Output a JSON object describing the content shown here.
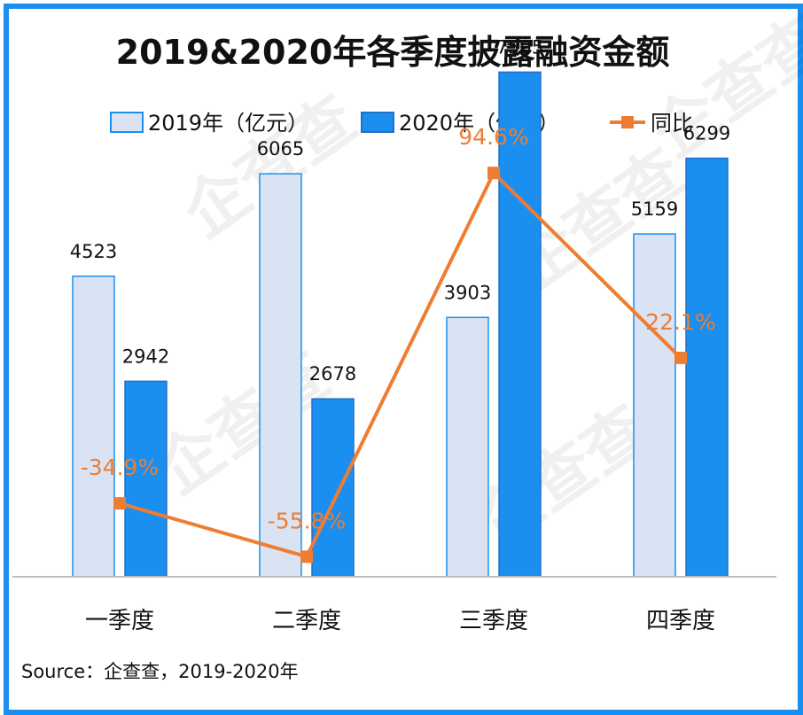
{
  "title": "2019&2020年各季度披露融资金额",
  "source": "Source：企查查，2019-2020年",
  "watermark": "企查查",
  "colors": {
    "frame": "#1a8ff0",
    "bar2019_fill": "#d9e3f3",
    "bar2019_stroke": "#1a8ff0",
    "bar2020_fill": "#1a8ff0",
    "bar2020_stroke": "#2170c8",
    "line": "#ef7d31",
    "axis": "#bfbfbf"
  },
  "chart_data": {
    "type": "bar",
    "title": "2019&2020年各季度披露融资金额",
    "categories": [
      "一季度",
      "二季度",
      "三季度",
      "四季度"
    ],
    "series": [
      {
        "name": "2019年（亿元）",
        "type": "bar",
        "values": [
          4523,
          6065,
          3903,
          5159
        ]
      },
      {
        "name": "2020年（亿元）",
        "type": "bar",
        "values": [
          2942,
          2678,
          7595,
          6299
        ]
      },
      {
        "name": "同比",
        "type": "line",
        "values": [
          -34.9,
          -55.8,
          94.6,
          22.1
        ],
        "labels": [
          "-34.9%",
          "-55.8%",
          "94.6%",
          "22.1%"
        ]
      }
    ],
    "ylim": [
      0,
      8000
    ],
    "ylim_secondary": [
      -80,
      120
    ],
    "grid": false,
    "legend": "top"
  }
}
